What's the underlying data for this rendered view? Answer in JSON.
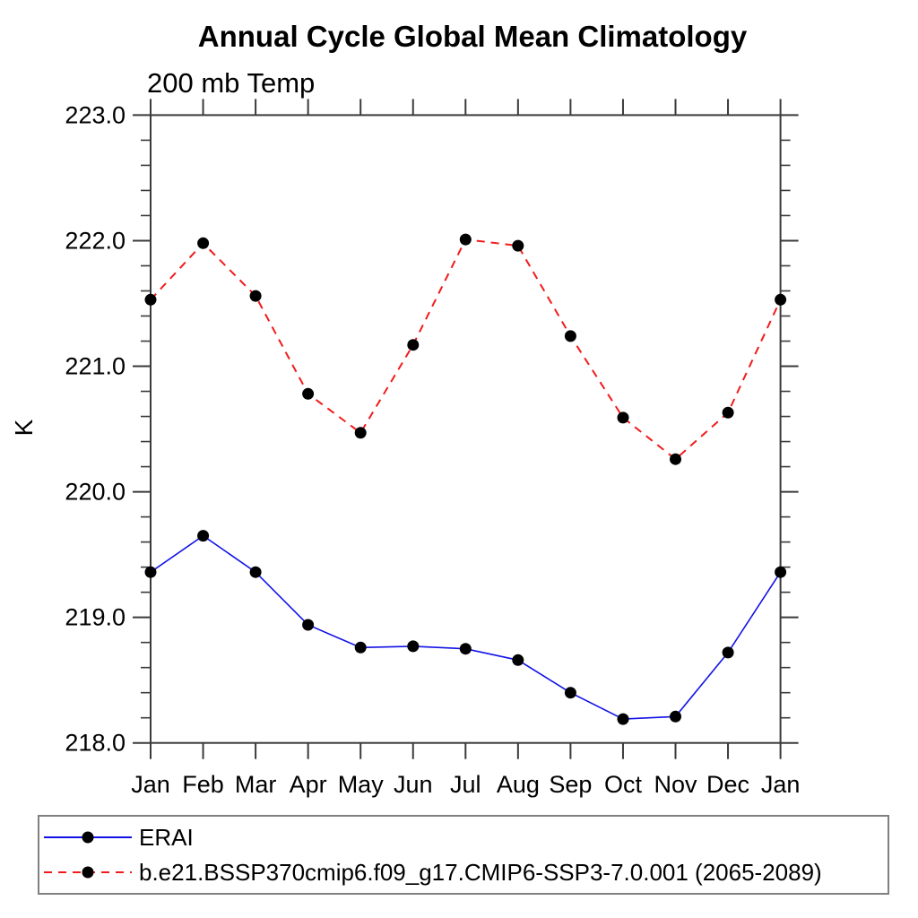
{
  "title": "Annual Cycle Global Mean Climatology",
  "subtitle": "200 mb Temp",
  "ylabel": "K",
  "colors": {
    "erai_line": "#1212e6",
    "model_line": "#f21a1a",
    "marker": "#000000",
    "axis": "#3a3a3a",
    "legend_border": "#808080"
  },
  "legend": {
    "position": "bottom",
    "entries": [
      {
        "label": "ERAI",
        "line_style": "solid",
        "color": "#1212e6",
        "marker": "black-dot"
      },
      {
        "label": "b.e21.BSSP370cmip6.f09_g17.CMIP6-SSP3-7.0.001 (2065-2089)",
        "line_style": "dashed",
        "color": "#f21a1a",
        "marker": "black-dot"
      }
    ]
  },
  "chart_data": {
    "type": "line",
    "title": "Annual Cycle Global Mean Climatology",
    "subtitle": "200 mb Temp",
    "xlabel": "",
    "ylabel": "K",
    "categories": [
      "Jan",
      "Feb",
      "Mar",
      "Apr",
      "May",
      "Jun",
      "Jul",
      "Aug",
      "Sep",
      "Oct",
      "Nov",
      "Dec",
      "Jan"
    ],
    "ylim": [
      218.0,
      223.0
    ],
    "ytick_labels": [
      "223.0",
      "222.0",
      "221.0",
      "220.0",
      "219.0",
      "218.0"
    ],
    "ytick_interval": 1.0,
    "yminor_interval": 0.2,
    "grid": false,
    "legend_position": "bottom",
    "series": [
      {
        "name": "ERAI",
        "line": "solid",
        "color": "#1212e6",
        "marker": "circle",
        "values": [
          219.36,
          219.65,
          219.36,
          218.94,
          218.76,
          218.77,
          218.75,
          218.66,
          218.4,
          218.19,
          218.21,
          218.72,
          219.36
        ]
      },
      {
        "name": "b.e21.BSSP370cmip6.f09_g17.CMIP6-SSP3-7.0.001 (2065-2089)",
        "line": "dashed",
        "color": "#f21a1a",
        "marker": "circle",
        "values": [
          221.53,
          221.98,
          221.56,
          220.78,
          220.47,
          221.17,
          222.01,
          221.96,
          221.24,
          220.59,
          220.26,
          220.63,
          221.53
        ]
      }
    ]
  }
}
